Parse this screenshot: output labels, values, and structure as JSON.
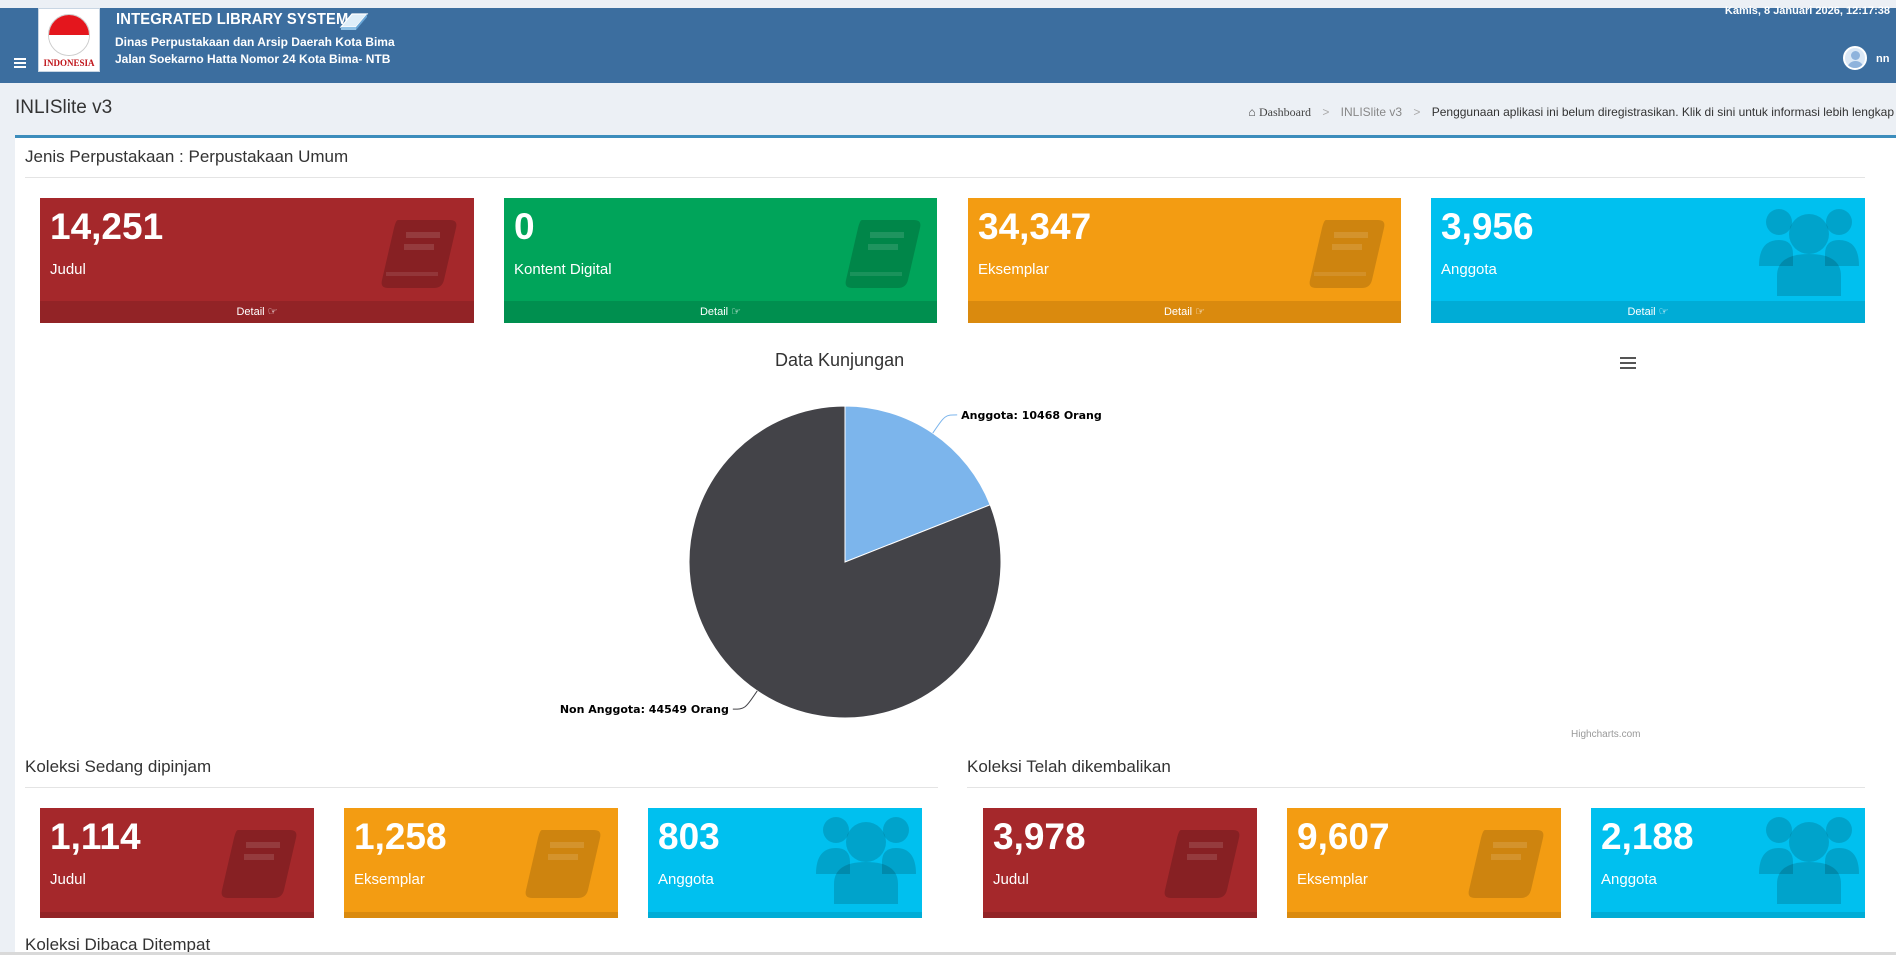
{
  "header": {
    "app_title": "INTEGRATED LIBRARY SYSTEM",
    "logo_text": "INDONESIA",
    "subtitle_line1": "Dinas Perpustakaan dan Arsip Daerah Kota Bima",
    "subtitle_line2": "Jalan Soekarno Hatta Nomor 24 Kota Bima- NTB",
    "datetime": "Kamis, 8 Januari 2026, 12:17:38",
    "username": "nn"
  },
  "page": {
    "title": "INLISlite v3",
    "breadcrumb": {
      "home": "Dashboard",
      "current": "INLISlite v3",
      "notice": "Penggunaan aplikasi ini belum diregistrasikan. Klik di sini untuk informasi lebih lengkap"
    }
  },
  "library_type_title": "Jenis Perpustakaan : Perpustakaan Umum",
  "top_stats": [
    {
      "value": "14,251",
      "label": "Judul",
      "footer": "Detail",
      "color": "#a5282b",
      "icon": "book-icon"
    },
    {
      "value": "0",
      "label": "Kontent Digital",
      "footer": "Detail",
      "color": "#00a45a",
      "icon": "book-icon"
    },
    {
      "value": "34,347",
      "label": "Eksemplar",
      "footer": "Detail",
      "color": "#f39c12",
      "icon": "book-icon"
    },
    {
      "value": "3,956",
      "label": "Anggota",
      "footer": "Detail",
      "color": "#00c0ef",
      "icon": "users-icon"
    }
  ],
  "chart_data": {
    "type": "pie",
    "title": "Data Kunjungan",
    "credits": "Highcharts.com",
    "slices": [
      {
        "name": "Anggota",
        "value": 10468,
        "label": "Anggota: 10468 Orang",
        "color": "#7cb5ec"
      },
      {
        "name": "Non Anggota",
        "value": 44549,
        "label": "Non Anggota: 44549 Orang",
        "color": "#434348"
      }
    ]
  },
  "borrowed": {
    "title": "Koleksi Sedang dipinjam",
    "stats": [
      {
        "value": "1,114",
        "label": "Judul",
        "color": "#a5282b",
        "icon": "book-icon"
      },
      {
        "value": "1,258",
        "label": "Eksemplar",
        "color": "#f39c12",
        "icon": "book-icon"
      },
      {
        "value": "803",
        "label": "Anggota",
        "color": "#00c0ef",
        "icon": "users-icon"
      }
    ]
  },
  "returned": {
    "title": "Koleksi Telah dikembalikan",
    "stats": [
      {
        "value": "3,978",
        "label": "Judul",
        "color": "#a5282b",
        "icon": "book-icon"
      },
      {
        "value": "9,607",
        "label": "Eksemplar",
        "color": "#f39c12",
        "icon": "book-icon"
      },
      {
        "value": "2,188",
        "label": "Anggota",
        "color": "#00c0ef",
        "icon": "users-icon"
      }
    ]
  },
  "read_onsite": {
    "title": "Koleksi Dibaca Ditempat"
  }
}
